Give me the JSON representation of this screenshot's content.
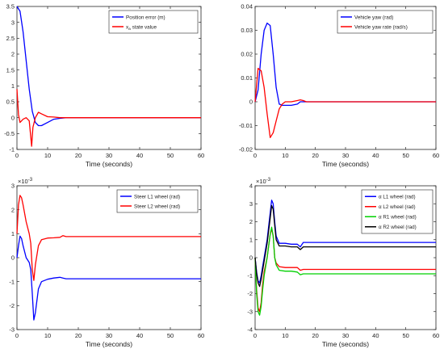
{
  "chart_data": [
    {
      "type": "line",
      "xlabel": "Time (seconds)",
      "xlim": [
        0,
        60
      ],
      "ylim": [
        -1,
        3.5
      ],
      "xticks": [
        0,
        10,
        20,
        30,
        40,
        50,
        60
      ],
      "yticks": [
        -1,
        -0.5,
        0,
        0.5,
        1,
        1.5,
        2,
        2.5,
        3,
        3.5
      ],
      "ytick_labels": [
        "-1",
        "-0.5",
        "0",
        "0.5",
        "1",
        "1.5",
        "2",
        "2.5",
        "3",
        "3.5"
      ],
      "exponent_label": "",
      "legend_position": "top-right",
      "series": [
        {
          "name": "Position error (m)",
          "color": "#0000ff",
          "x": [
            0,
            1,
            2,
            3,
            4,
            5,
            6,
            7,
            8,
            10,
            12,
            14,
            16,
            20,
            30,
            60
          ],
          "y": [
            3.5,
            3.35,
            2.7,
            1.8,
            0.9,
            0.2,
            -0.15,
            -0.25,
            -0.25,
            -0.15,
            -0.05,
            -0.02,
            0,
            0,
            0,
            0
          ]
        },
        {
          "name": "x_a state value",
          "label_main": "x",
          "label_sub": "a",
          "label_rest": " state value",
          "color": "#ff0000",
          "x": [
            0,
            0.5,
            1,
            2,
            3,
            4,
            4.8,
            5.2,
            6,
            7,
            8,
            10,
            12,
            14,
            20,
            60
          ],
          "y": [
            0.9,
            0.1,
            -0.15,
            -0.05,
            0,
            -0.1,
            -0.9,
            -0.3,
            0,
            0.17,
            0.12,
            0.03,
            0.02,
            0,
            0,
            0
          ]
        }
      ]
    },
    {
      "type": "line",
      "xlabel": "Time (seconds)",
      "xlim": [
        0,
        60
      ],
      "ylim": [
        -0.02,
        0.04
      ],
      "xticks": [
        0,
        10,
        20,
        30,
        40,
        50,
        60
      ],
      "yticks": [
        -0.02,
        -0.01,
        0,
        0.01,
        0.02,
        0.03,
        0.04
      ],
      "ytick_labels": [
        "-0.02",
        "-0.01",
        "0",
        "0.01",
        "0.02",
        "0.03",
        "0.04"
      ],
      "exponent_label": "",
      "legend_position": "top-right",
      "series": [
        {
          "name": "Vehicle yaw (rad)",
          "color": "#0000ff",
          "x": [
            0,
            1,
            2,
            3,
            4,
            5,
            6,
            7,
            8,
            9,
            10,
            12,
            14,
            15,
            16,
            20,
            60
          ],
          "y": [
            0,
            0.005,
            0.02,
            0.03,
            0.033,
            0.032,
            0.02,
            0.006,
            -0.001,
            -0.0015,
            -0.0015,
            -0.0015,
            -0.001,
            0,
            0,
            0,
            0
          ]
        },
        {
          "name": "Vehicle yaw rate (rad/s)",
          "color": "#ff0000",
          "x": [
            0,
            1,
            2,
            3,
            4,
            5,
            6,
            7,
            8,
            9,
            10,
            12,
            14,
            15,
            16,
            17,
            20,
            60
          ],
          "y": [
            0,
            0.014,
            0.013,
            0.006,
            -0.005,
            -0.015,
            -0.013,
            -0.008,
            -0.003,
            -0.001,
            0,
            0,
            0.0005,
            0.0008,
            0.0005,
            0,
            0,
            0
          ]
        }
      ]
    },
    {
      "type": "line",
      "xlabel": "Time (seconds)",
      "xlim": [
        0,
        60
      ],
      "ylim": [
        -3,
        3
      ],
      "xticks": [
        0,
        10,
        20,
        30,
        40,
        50,
        60
      ],
      "yticks": [
        -3,
        -2,
        -1,
        0,
        1,
        2,
        3
      ],
      "ytick_labels": [
        "-3",
        "-2",
        "-1",
        "0",
        "1",
        "2",
        "3"
      ],
      "exponent_label": "×10",
      "exponent_power": "-3",
      "legend_position": "top-right",
      "series": [
        {
          "name": "Steer L1 wheel (rad)",
          "color": "#0000ff",
          "x": [
            0,
            0.5,
            1,
            1.5,
            2,
            3,
            4,
            4.5,
            5,
            5.5,
            6,
            7,
            8,
            10,
            12,
            14,
            15,
            16,
            20,
            60
          ],
          "y": [
            0,
            0.5,
            0.9,
            0.8,
            0.5,
            0,
            -0.2,
            -0.5,
            -1.5,
            -2.6,
            -2.3,
            -1.3,
            -1,
            -0.9,
            -0.85,
            -0.82,
            -0.85,
            -0.88,
            -0.88,
            -0.88
          ]
        },
        {
          "name": "Steer L2 wheel (rad)",
          "color": "#ff0000",
          "x": [
            0,
            0.5,
            1,
            1.5,
            2,
            3,
            4,
            4.5,
            5,
            5.5,
            6,
            7,
            8,
            10,
            12,
            14,
            15,
            16,
            20,
            60
          ],
          "y": [
            1,
            2.2,
            2.6,
            2.5,
            2.2,
            1.5,
            1,
            0.6,
            -0.5,
            -0.95,
            -0.3,
            0.5,
            0.75,
            0.82,
            0.83,
            0.85,
            0.92,
            0.88,
            0.88,
            0.88
          ]
        }
      ]
    },
    {
      "type": "line",
      "xlabel": "Time (seconds)",
      "xlim": [
        0,
        60
      ],
      "ylim": [
        -4,
        4
      ],
      "xticks": [
        0,
        10,
        20,
        30,
        40,
        50,
        60
      ],
      "yticks": [
        -4,
        -3,
        -2,
        -1,
        0,
        1,
        2,
        3,
        4
      ],
      "ytick_labels": [
        "-4",
        "-3",
        "-2",
        "-1",
        "0",
        "1",
        "2",
        "3",
        "4"
      ],
      "exponent_label": "×10",
      "exponent_power": "-3",
      "legend_position": "top-right",
      "legend_prefix": "α",
      "series": [
        {
          "name": "L1 wheel (rad)",
          "color": "#0000ff",
          "x": [
            0,
            0.5,
            1,
            1.5,
            2,
            2.5,
            3,
            4,
            5,
            5.5,
            6,
            6.5,
            7,
            8,
            10,
            12,
            14,
            15,
            16,
            20,
            60
          ],
          "y": [
            0,
            -0.8,
            -1.3,
            -1.4,
            -1,
            -0.5,
            0,
            1,
            2.5,
            3.2,
            3,
            2,
            1.2,
            0.8,
            0.8,
            0.75,
            0.75,
            0.6,
            0.85,
            0.85,
            0.85
          ]
        },
        {
          "name": "L2 wheel (rad)",
          "color": "#ff0000",
          "x": [
            0,
            0.5,
            1,
            1.5,
            2,
            2.5,
            3,
            4,
            5,
            5.5,
            6,
            6.5,
            7,
            8,
            10,
            12,
            14,
            15,
            16,
            20,
            60
          ],
          "y": [
            0,
            -1.8,
            -2.8,
            -3,
            -2.5,
            -1.5,
            -0.8,
            0,
            1.3,
            1.6,
            1.2,
            0,
            -0.3,
            -0.5,
            -0.55,
            -0.55,
            -0.55,
            -0.7,
            -0.65,
            -0.65,
            -0.65
          ]
        },
        {
          "name": "R1 wheel (rad)",
          "color": "#00d000",
          "x": [
            0,
            0.5,
            1,
            1.5,
            2,
            2.5,
            3,
            4,
            5,
            5.5,
            6,
            6.5,
            7,
            8,
            10,
            12,
            14,
            15,
            16,
            20,
            60
          ],
          "y": [
            0,
            -2,
            -3,
            -3.2,
            -2.7,
            -1.8,
            -1,
            0,
            1.3,
            1.7,
            1.2,
            0,
            -0.4,
            -0.7,
            -0.75,
            -0.75,
            -0.8,
            -0.95,
            -0.9,
            -0.9,
            -0.9
          ]
        },
        {
          "name": "R2 wheel (rad)",
          "color": "#000000",
          "x": [
            0,
            0.5,
            1,
            1.5,
            2,
            2.5,
            3,
            4,
            5,
            5.5,
            6,
            6.5,
            7,
            8,
            10,
            12,
            14,
            15,
            16,
            20,
            60
          ],
          "y": [
            0,
            -0.9,
            -1.4,
            -1.6,
            -1.2,
            -0.7,
            -0.2,
            0.8,
            2.2,
            2.9,
            2.7,
            1.8,
            1,
            0.65,
            0.65,
            0.6,
            0.6,
            0.45,
            0.6,
            0.6,
            0.6
          ]
        }
      ]
    }
  ]
}
